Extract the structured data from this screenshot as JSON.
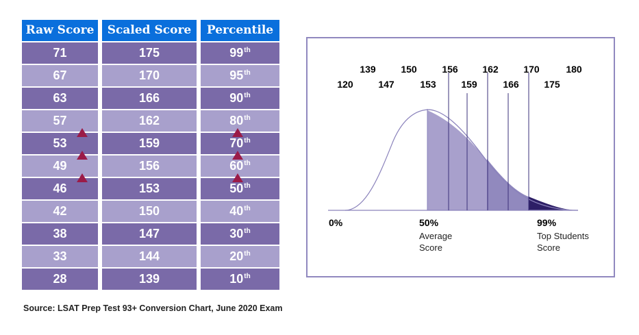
{
  "colors": {
    "header": "#0a6fdc",
    "row_dark": "#7a6aa8",
    "row_light": "#a8a0cc",
    "arrow": "#9b1b48",
    "curve": "#8a82bb",
    "top_fill": "#2d1f66"
  },
  "table": {
    "headers": [
      "Raw Score",
      "Scaled Score",
      "Percentile"
    ],
    "rows": [
      {
        "raw": "71",
        "scaled": "175",
        "pct": "99",
        "suffix": "th"
      },
      {
        "raw": "67",
        "scaled": "170",
        "pct": "95",
        "suffix": "th"
      },
      {
        "raw": "63",
        "scaled": "166",
        "pct": "90",
        "suffix": "th"
      },
      {
        "raw": "57",
        "scaled": "162",
        "pct": "80",
        "suffix": "th"
      },
      {
        "raw": "53",
        "scaled": "159",
        "pct": "70",
        "suffix": "th"
      },
      {
        "raw": "49",
        "scaled": "156",
        "pct": "60",
        "suffix": "th"
      },
      {
        "raw": "46",
        "scaled": "153",
        "pct": "50",
        "suffix": "th"
      },
      {
        "raw": "42",
        "scaled": "150",
        "pct": "40",
        "suffix": "th"
      },
      {
        "raw": "38",
        "scaled": "147",
        "pct": "30",
        "suffix": "th"
      },
      {
        "raw": "33",
        "scaled": "144",
        "pct": "20",
        "suffix": "th"
      },
      {
        "raw": "28",
        "scaled": "139",
        "pct": "10",
        "suffix": "th"
      }
    ]
  },
  "source": "Source: LSAT Prep Test 93+ Conversion Chart, June 2020 Exam",
  "chart_data": [
    {
      "type": "table",
      "columns": [
        "Raw Score",
        "Scaled Score",
        "Percentile"
      ],
      "rows": [
        [
          71,
          175,
          "99th"
        ],
        [
          67,
          170,
          "95th"
        ],
        [
          63,
          166,
          "90th"
        ],
        [
          57,
          162,
          "80th"
        ],
        [
          53,
          159,
          "70th"
        ],
        [
          49,
          156,
          "60th"
        ],
        [
          46,
          153,
          "50th"
        ],
        [
          42,
          150,
          "40th"
        ],
        [
          38,
          147,
          "30th"
        ],
        [
          33,
          144,
          "20th"
        ],
        [
          28,
          139,
          "10th"
        ]
      ]
    },
    {
      "type": "area",
      "description_labels": {
        "score_labels_top": [
          "139",
          "150",
          "156",
          "162",
          "170",
          "180"
        ],
        "score_labels_bottom": [
          "120",
          "147",
          "153",
          "159",
          "166",
          "175"
        ],
        "percentile_markers": [
          "0%",
          "50%",
          "99%"
        ],
        "marker_captions": [
          "Average Score",
          "Top Students Score"
        ]
      },
      "marked_scores": [
        156,
        159,
        162,
        166,
        170
      ],
      "shaded_from_percentile": 50,
      "dark_from_percentile": 99
    }
  ]
}
